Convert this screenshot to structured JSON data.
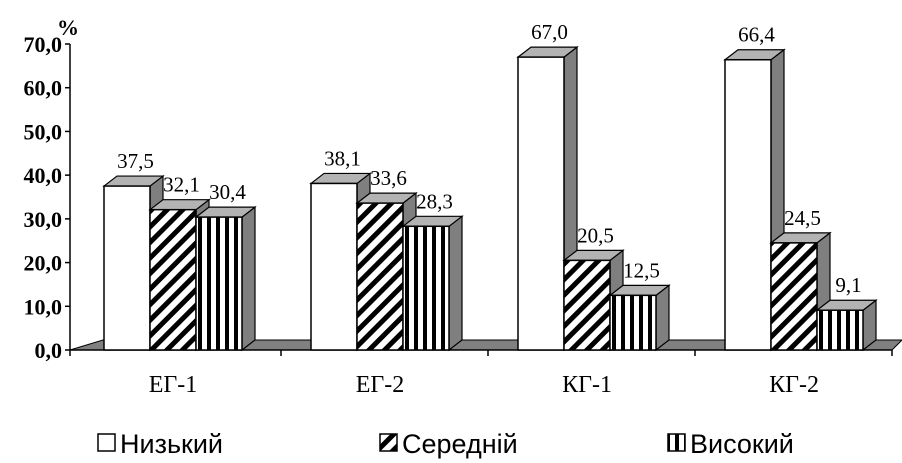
{
  "chart_data": {
    "type": "bar",
    "categories": [
      "ЕГ-1",
      "ЕГ-2",
      "КГ-1",
      "КГ-2"
    ],
    "series": [
      {
        "name": "Низький",
        "values": [
          37.5,
          38.1,
          67.0,
          66.4
        ],
        "labels": [
          "37,5",
          "38,1",
          "67,0",
          "66,4"
        ],
        "pattern": "solid-white"
      },
      {
        "name": "Середній",
        "values": [
          32.1,
          33.6,
          20.5,
          24.5
        ],
        "labels": [
          "32,1",
          "33,6",
          "20,5",
          "24,5"
        ],
        "pattern": "diagonal-hatch"
      },
      {
        "name": "Високий",
        "values": [
          30.4,
          28.3,
          12.5,
          9.1
        ],
        "labels": [
          "30,4",
          "28,3",
          "12,5",
          "9,1"
        ],
        "pattern": "vertical-stripes"
      }
    ],
    "y_unit": "%",
    "ylim": [
      0,
      70
    ],
    "y_ticks": [
      "0,0",
      "10,0",
      "20,0",
      "30,0",
      "40,0",
      "50,0",
      "60,0",
      "70,0"
    ],
    "grid": false,
    "legend_position": "bottom",
    "style": "3d"
  },
  "colors": {
    "bar_front": "#ffffff",
    "bar_top": "#b3b3b3",
    "bar_side": "#7f7f7f",
    "floor": "#808080",
    "stroke": "#000000"
  }
}
